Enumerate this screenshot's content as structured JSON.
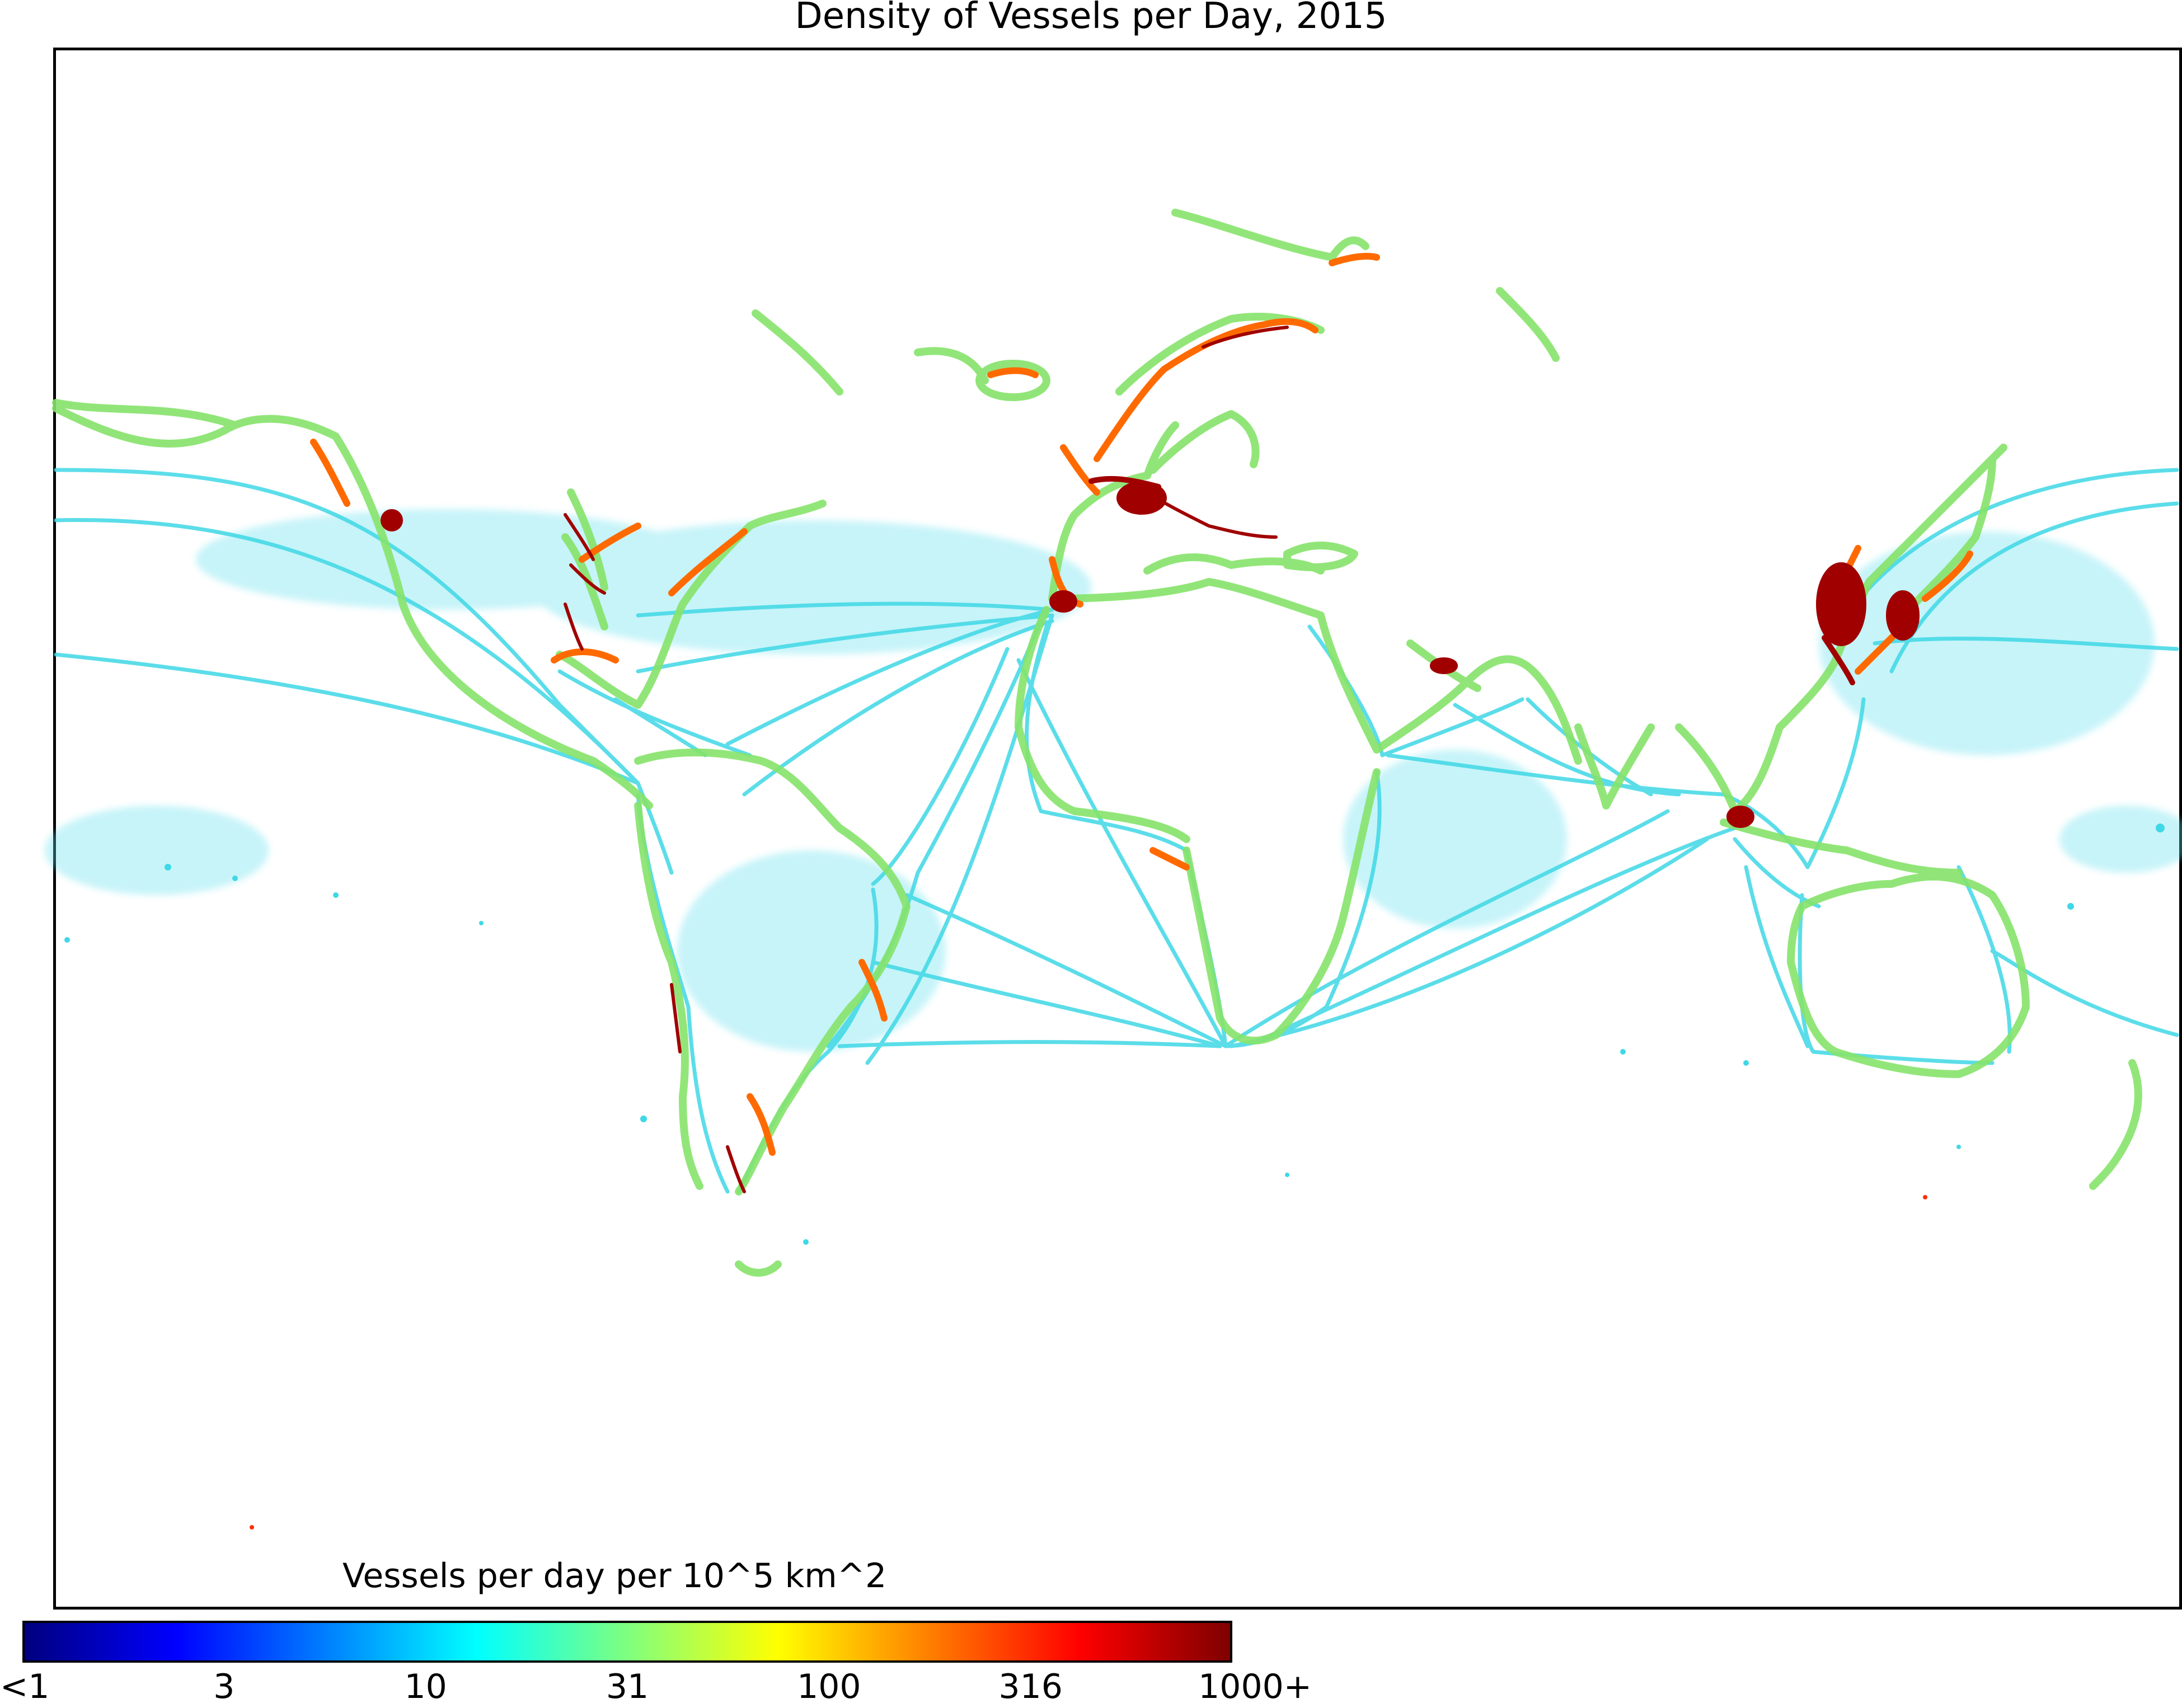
{
  "title": "Density of Vessels per Day, 2015",
  "colorbar": {
    "label": "Vessels per day per 10^5 km^2",
    "ticks": [
      "<1",
      "3",
      "10",
      "31",
      "100",
      "316",
      "1000+"
    ],
    "colormap": "jet",
    "scale": "log",
    "colors": [
      "#00007f",
      "#0000ff",
      "#007fff",
      "#00ffff",
      "#7fff7f",
      "#ffff00",
      "#ff7f00",
      "#ff0000",
      "#7f0000"
    ]
  },
  "map": {
    "projection": "equirectangular world map",
    "land_color": "#ffffff",
    "low_density_color": "#3fd6e8",
    "medium_density_color": "#7fdf5f",
    "high_density_color": "#ff6a00",
    "very_high_density_color": "#a00000"
  }
}
